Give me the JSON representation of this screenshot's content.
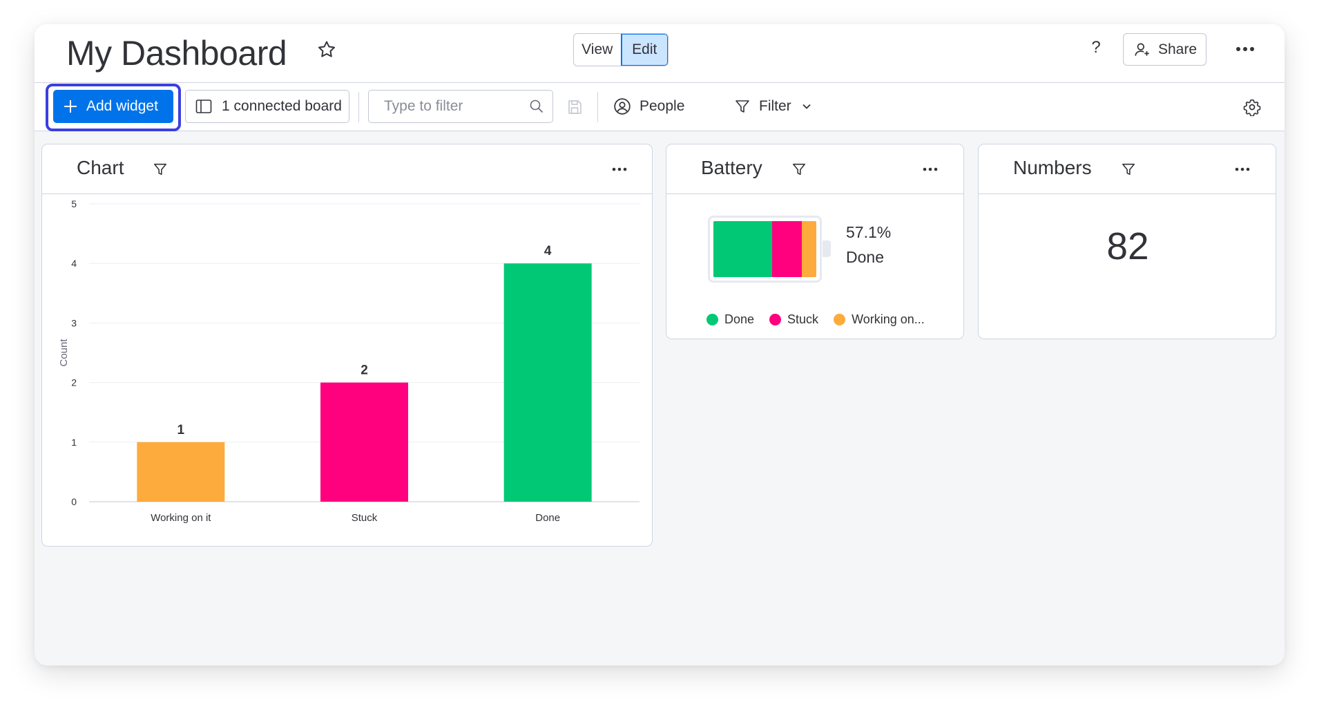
{
  "header": {
    "title": "My Dashboard",
    "view_label": "View",
    "edit_label": "Edit",
    "help_label": "?",
    "share_label": "Share"
  },
  "toolbar": {
    "add_widget_label": "Add widget",
    "connected_board_label": "1 connected board",
    "search_placeholder": "Type to filter",
    "people_label": "People",
    "filter_label": "Filter"
  },
  "colors": {
    "primary": "#0073ea",
    "done": "#00c875",
    "stuck": "#ff007f",
    "working_on_it": "#fdab3d"
  },
  "widgets": {
    "chart": {
      "title": "Chart"
    },
    "battery": {
      "title": "Battery",
      "percent_label": "57.1%",
      "caption": "Done",
      "segments": [
        {
          "name": "Done",
          "fraction": 0.571,
          "color": "#00c875"
        },
        {
          "name": "Stuck",
          "fraction": 0.286,
          "color": "#ff007f"
        },
        {
          "name": "Working on it",
          "fraction": 0.143,
          "color": "#fdab3d"
        }
      ],
      "legend": [
        "Done",
        "Stuck",
        "Working on..."
      ]
    },
    "numbers": {
      "title": "Numbers",
      "value": "82"
    }
  },
  "chart_data": {
    "type": "bar",
    "categories": [
      "Working on it",
      "Stuck",
      "Done"
    ],
    "values": [
      1,
      2,
      4
    ],
    "colors": [
      "#fdab3d",
      "#ff007f",
      "#00c875"
    ],
    "ylabel": "Count",
    "ylim": [
      0,
      5
    ],
    "yticks": [
      0,
      1,
      2,
      3,
      4,
      5
    ],
    "data_labels": true,
    "grid": true
  }
}
